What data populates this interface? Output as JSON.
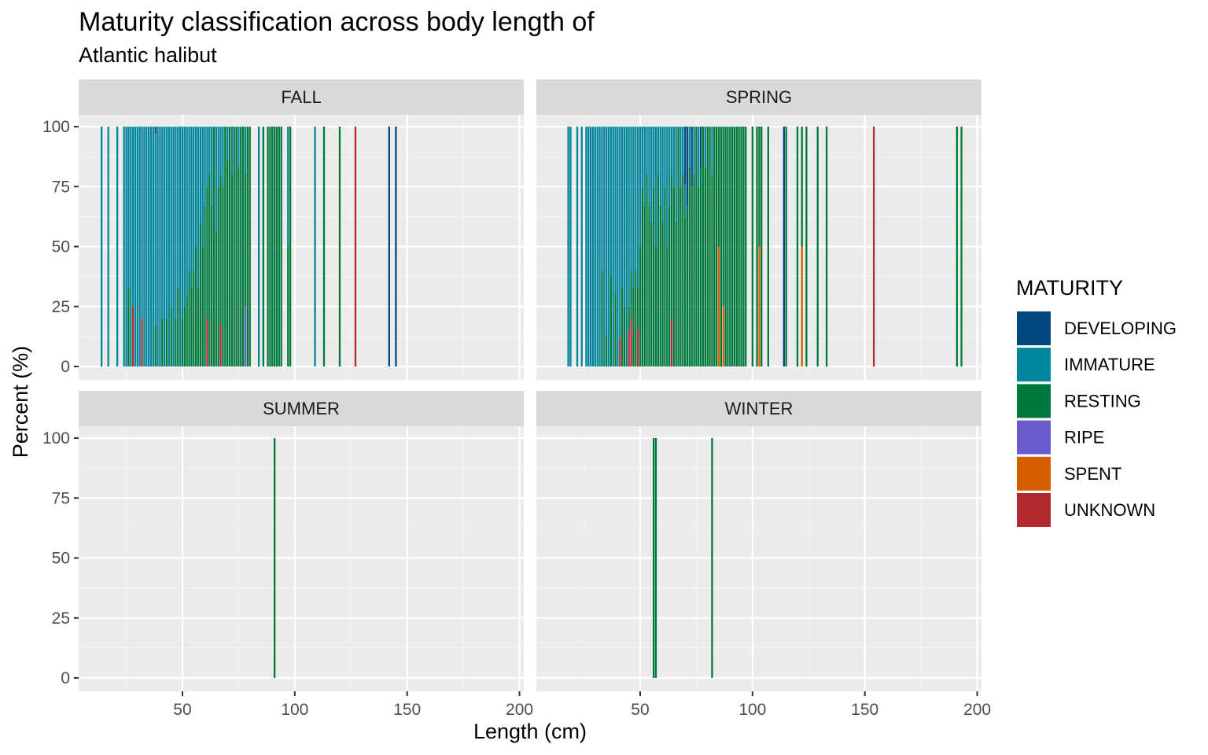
{
  "title": "Maturity classification across body length of",
  "subtitle": "Atlantic halibut",
  "colors": {
    "DEVELOPING": "#00467f",
    "IMMATURE": "#00869b",
    "RESTING": "#007a3c",
    "RIPE": "#6a5acd",
    "SPENT": "#d55e00",
    "UNKNOWN": "#b22a30"
  },
  "chart_data": {
    "type": "bar",
    "stacked": "percent",
    "xlabel": "Length (cm)",
    "ylabel": "Percent (%)",
    "xlim": [
      5,
      200
    ],
    "ylim": [
      0,
      100
    ],
    "x_ticks": [
      50,
      100,
      150,
      200
    ],
    "y_ticks": [
      0,
      25,
      50,
      75,
      100
    ],
    "legend": {
      "title": "MATURITY",
      "position": "right",
      "entries": [
        "DEVELOPING",
        "IMMATURE",
        "RESTING",
        "RIPE",
        "SPENT",
        "UNKNOWN"
      ]
    },
    "panels": [
      {
        "label": "FALL",
        "bars": [
          {
            "x": 14,
            "IMMATURE": 100
          },
          {
            "x": 17,
            "IMMATURE": 100
          },
          {
            "x": 21,
            "IMMATURE": 100
          },
          {
            "x": 24,
            "IMMATURE": 100
          },
          {
            "x": 25,
            "IMMATURE": 100
          },
          {
            "x": 26,
            "IMMATURE": 67,
            "RESTING": 33
          },
          {
            "x": 27,
            "IMMATURE": 100
          },
          {
            "x": 28,
            "IMMATURE": 75,
            "UNKNOWN": 25
          },
          {
            "x": 29,
            "IMMATURE": 100
          },
          {
            "x": 30,
            "IMMATURE": 100
          },
          {
            "x": 31,
            "IMMATURE": 100
          },
          {
            "x": 32,
            "IMMATURE": 80,
            "UNKNOWN": 20
          },
          {
            "x": 33,
            "IMMATURE": 100
          },
          {
            "x": 34,
            "IMMATURE": 100
          },
          {
            "x": 35,
            "IMMATURE": 100
          },
          {
            "x": 36,
            "IMMATURE": 100
          },
          {
            "x": 37,
            "IMMATURE": 100
          },
          {
            "x": 38,
            "IMMATURE": 80,
            "RESTING": 17,
            "DEVELOPING": 3
          },
          {
            "x": 39,
            "IMMATURE": 100
          },
          {
            "x": 40,
            "IMMATURE": 100
          },
          {
            "x": 41,
            "IMMATURE": 80,
            "RESTING": 20
          },
          {
            "x": 42,
            "IMMATURE": 100
          },
          {
            "x": 43,
            "IMMATURE": 80,
            "RESTING": 20
          },
          {
            "x": 44,
            "IMMATURE": 100
          },
          {
            "x": 45,
            "IMMATURE": 75,
            "RESTING": 25
          },
          {
            "x": 46,
            "IMMATURE": 100
          },
          {
            "x": 47,
            "IMMATURE": 80,
            "RESTING": 20
          },
          {
            "x": 48,
            "IMMATURE": 67,
            "RESTING": 33
          },
          {
            "x": 49,
            "IMMATURE": 100
          },
          {
            "x": 50,
            "IMMATURE": 80,
            "RESTING": 20
          },
          {
            "x": 51,
            "IMMATURE": 75,
            "RESTING": 25
          },
          {
            "x": 52,
            "IMMATURE": 71,
            "RESTING": 29
          },
          {
            "x": 53,
            "IMMATURE": 60,
            "RESTING": 40
          },
          {
            "x": 54,
            "IMMATURE": 67,
            "RESTING": 33
          },
          {
            "x": 55,
            "IMMATURE": 60,
            "RESTING": 40
          },
          {
            "x": 56,
            "IMMATURE": 50,
            "RESTING": 50
          },
          {
            "x": 57,
            "IMMATURE": 67,
            "RESTING": 33
          },
          {
            "x": 58,
            "IMMATURE": 40,
            "RESTING": 60
          },
          {
            "x": 59,
            "IMMATURE": 50,
            "RESTING": 50
          },
          {
            "x": 60,
            "IMMATURE": 33,
            "RESTING": 67
          },
          {
            "x": 61,
            "IMMATURE": 25,
            "RESTING": 55,
            "UNKNOWN": 20
          },
          {
            "x": 62,
            "IMMATURE": 20,
            "RESTING": 80
          },
          {
            "x": 63,
            "IMMATURE": 33,
            "RESTING": 67
          },
          {
            "x": 64,
            "IMMATURE": 0,
            "RESTING": 100
          },
          {
            "x": 65,
            "IMMATURE": 43,
            "RESTING": 57
          },
          {
            "x": 66,
            "IMMATURE": 25,
            "RESTING": 75
          },
          {
            "x": 67,
            "IMMATURE": 20,
            "RESTING": 63,
            "UNKNOWN": 17
          },
          {
            "x": 68,
            "IMMATURE": 25,
            "RESTING": 75
          },
          {
            "x": 69,
            "IMMATURE": 0,
            "RESTING": 100
          },
          {
            "x": 70,
            "IMMATURE": 14,
            "RESTING": 86
          },
          {
            "x": 71,
            "IMMATURE": 0,
            "RESTING": 100
          },
          {
            "x": 72,
            "IMMATURE": 20,
            "RESTING": 80
          },
          {
            "x": 73,
            "IMMATURE": 0,
            "RESTING": 100
          },
          {
            "x": 74,
            "IMMATURE": 0,
            "RESTING": 100
          },
          {
            "x": 75,
            "IMMATURE": 17,
            "RESTING": 83
          },
          {
            "x": 76,
            "IMMATURE": 0,
            "RESTING": 100
          },
          {
            "x": 77,
            "IMMATURE": 0,
            "RESTING": 100
          },
          {
            "x": 78,
            "IMMATURE": 20,
            "RESTING": 55,
            "RIPE": 25
          },
          {
            "x": 79,
            "RESTING": 100
          },
          {
            "x": 80,
            "IMMATURE": 0,
            "RESTING": 100
          },
          {
            "x": 84,
            "IMMATURE": 100
          },
          {
            "x": 86,
            "RESTING": 100
          },
          {
            "x": 88,
            "RESTING": 100
          },
          {
            "x": 89,
            "RESTING": 100
          },
          {
            "x": 90,
            "RESTING": 100
          },
          {
            "x": 91,
            "RESTING": 100
          },
          {
            "x": 92,
            "RESTING": 100
          },
          {
            "x": 93,
            "RESTING": 100
          },
          {
            "x": 94,
            "RESTING": 100
          },
          {
            "x": 97,
            "IMMATURE": 50,
            "RESTING": 50
          },
          {
            "x": 98,
            "RESTING": 100
          },
          {
            "x": 109,
            "IMMATURE": 100
          },
          {
            "x": 113,
            "RESTING": 100
          },
          {
            "x": 120,
            "RESTING": 100
          },
          {
            "x": 127,
            "UNKNOWN": 100
          },
          {
            "x": 142,
            "DEVELOPING": 100
          },
          {
            "x": 145,
            "DEVELOPING": 100
          }
        ]
      },
      {
        "label": "SPRING",
        "bars": [
          {
            "x": 18,
            "IMMATURE": 100
          },
          {
            "x": 19,
            "IMMATURE": 100
          },
          {
            "x": 22,
            "IMMATURE": 100
          },
          {
            "x": 24,
            "IMMATURE": 100
          },
          {
            "x": 26,
            "IMMATURE": 100
          },
          {
            "x": 27,
            "IMMATURE": 100
          },
          {
            "x": 28,
            "IMMATURE": 100
          },
          {
            "x": 29,
            "IMMATURE": 100
          },
          {
            "x": 30,
            "IMMATURE": 100
          },
          {
            "x": 31,
            "IMMATURE": 100
          },
          {
            "x": 32,
            "IMMATURE": 100
          },
          {
            "x": 33,
            "IMMATURE": 60,
            "RESTING": 40
          },
          {
            "x": 34,
            "IMMATURE": 100
          },
          {
            "x": 35,
            "IMMATURE": 87,
            "RESTING": 13
          },
          {
            "x": 36,
            "IMMATURE": 100
          },
          {
            "x": 37,
            "IMMATURE": 62,
            "RESTING": 38
          },
          {
            "x": 38,
            "IMMATURE": 100
          },
          {
            "x": 39,
            "IMMATURE": 70,
            "RESTING": 30
          },
          {
            "x": 40,
            "IMMATURE": 100
          },
          {
            "x": 41,
            "IMMATURE": 88,
            "UNKNOWN": 12
          },
          {
            "x": 42,
            "IMMATURE": 67,
            "RESTING": 33
          },
          {
            "x": 43,
            "IMMATURE": 75,
            "RESTING": 25
          },
          {
            "x": 44,
            "IMMATURE": 100
          },
          {
            "x": 45,
            "IMMATURE": 75,
            "RESTING": 10,
            "UNKNOWN": 15
          },
          {
            "x": 46,
            "IMMATURE": 60,
            "RESTING": 20,
            "UNKNOWN": 20
          },
          {
            "x": 47,
            "IMMATURE": 67,
            "RESTING": 33
          },
          {
            "x": 48,
            "IMMATURE": 60,
            "RESTING": 40
          },
          {
            "x": 49,
            "IMMATURE": 67,
            "RESTING": 17,
            "UNKNOWN": 16
          },
          {
            "x": 50,
            "IMMATURE": 50,
            "RESTING": 50
          },
          {
            "x": 51,
            "IMMATURE": 25,
            "RESTING": 75
          },
          {
            "x": 52,
            "IMMATURE": 33,
            "RESTING": 67
          },
          {
            "x": 53,
            "IMMATURE": 20,
            "RESTING": 80
          },
          {
            "x": 54,
            "IMMATURE": 33,
            "RESTING": 67
          },
          {
            "x": 55,
            "IMMATURE": 40,
            "RESTING": 60
          },
          {
            "x": 56,
            "IMMATURE": 25,
            "RESTING": 75
          },
          {
            "x": 57,
            "IMMATURE": 50,
            "RESTING": 50
          },
          {
            "x": 58,
            "IMMATURE": 20,
            "RESTING": 80
          },
          {
            "x": 59,
            "IMMATURE": 33,
            "RESTING": 67
          },
          {
            "x": 60,
            "IMMATURE": 40,
            "RESTING": 60
          },
          {
            "x": 61,
            "IMMATURE": 25,
            "RESTING": 75
          },
          {
            "x": 62,
            "IMMATURE": 50,
            "RESTING": 50
          },
          {
            "x": 63,
            "IMMATURE": 33,
            "RESTING": 67
          },
          {
            "x": 64,
            "IMMATURE": 20,
            "RESTING": 60,
            "UNKNOWN": 20
          },
          {
            "x": 65,
            "IMMATURE": 25,
            "RESTING": 75
          },
          {
            "x": 66,
            "IMMATURE": 40,
            "RESTING": 60
          },
          {
            "x": 67,
            "IMMATURE": 0,
            "RESTING": 100
          },
          {
            "x": 68,
            "IMMATURE": 25,
            "RESTING": 75
          },
          {
            "x": 69,
            "IMMATURE": 20,
            "RESTING": 80
          },
          {
            "x": 70,
            "IMMATURE": 14,
            "RESTING": 62,
            "DEVELOPING": 24
          },
          {
            "x": 71,
            "IMMATURE": 0,
            "RESTING": 67,
            "DEVELOPING": 33
          },
          {
            "x": 72,
            "IMMATURE": 17,
            "RESTING": 83
          },
          {
            "x": 73,
            "RESTING": 75,
            "DEVELOPING": 25
          },
          {
            "x": 74,
            "IMMATURE": 20,
            "RESTING": 80
          },
          {
            "x": 75,
            "RESTING": 100
          },
          {
            "x": 76,
            "IMMATURE": 25,
            "RESTING": 75
          },
          {
            "x": 77,
            "RESTING": 83,
            "DEVELOPING": 17
          },
          {
            "x": 78,
            "RESTING": 100
          },
          {
            "x": 79,
            "IMMATURE": 17,
            "RESTING": 83
          },
          {
            "x": 80,
            "RESTING": 100
          },
          {
            "x": 81,
            "RESTING": 100
          },
          {
            "x": 82,
            "IMMATURE": 20,
            "RESTING": 80
          },
          {
            "x": 83,
            "RESTING": 100
          },
          {
            "x": 84,
            "RESTING": 100
          },
          {
            "x": 85,
            "RESTING": 50,
            "SPENT": 50
          },
          {
            "x": 86,
            "RESTING": 100
          },
          {
            "x": 87,
            "RESTING": 75,
            "SPENT": 25
          },
          {
            "x": 88,
            "RESTING": 100
          },
          {
            "x": 89,
            "RESTING": 100
          },
          {
            "x": 90,
            "RESTING": 100
          },
          {
            "x": 91,
            "RESTING": 100
          },
          {
            "x": 92,
            "RESTING": 100
          },
          {
            "x": 93,
            "RESTING": 100
          },
          {
            "x": 94,
            "RESTING": 100
          },
          {
            "x": 95,
            "RESTING": 100
          },
          {
            "x": 96,
            "RESTING": 100
          },
          {
            "x": 97,
            "RESTING": 100
          },
          {
            "x": 100,
            "RESTING": 100
          },
          {
            "x": 102,
            "RESTING": 100
          },
          {
            "x": 103,
            "RESTING": 50,
            "SPENT": 50
          },
          {
            "x": 104,
            "RESTING": 100
          },
          {
            "x": 107,
            "RESTING": 100
          },
          {
            "x": 114,
            "DEVELOPING": 100
          },
          {
            "x": 115,
            "RESTING": 100
          },
          {
            "x": 120,
            "RESTING": 100
          },
          {
            "x": 122,
            "RESTING": 50,
            "SPENT": 50
          },
          {
            "x": 124,
            "RESTING": 100
          },
          {
            "x": 129,
            "RESTING": 100
          },
          {
            "x": 133,
            "RESTING": 100
          },
          {
            "x": 154,
            "UNKNOWN": 100
          },
          {
            "x": 191,
            "RESTING": 100
          },
          {
            "x": 193,
            "RESTING": 100
          }
        ]
      },
      {
        "label": "SUMMER",
        "bars": [
          {
            "x": 91,
            "RESTING": 100
          }
        ]
      },
      {
        "label": "WINTER",
        "bars": [
          {
            "x": 56,
            "RESTING": 100
          },
          {
            "x": 57,
            "RESTING": 100
          },
          {
            "x": 82,
            "RESTING": 100
          }
        ]
      }
    ]
  }
}
